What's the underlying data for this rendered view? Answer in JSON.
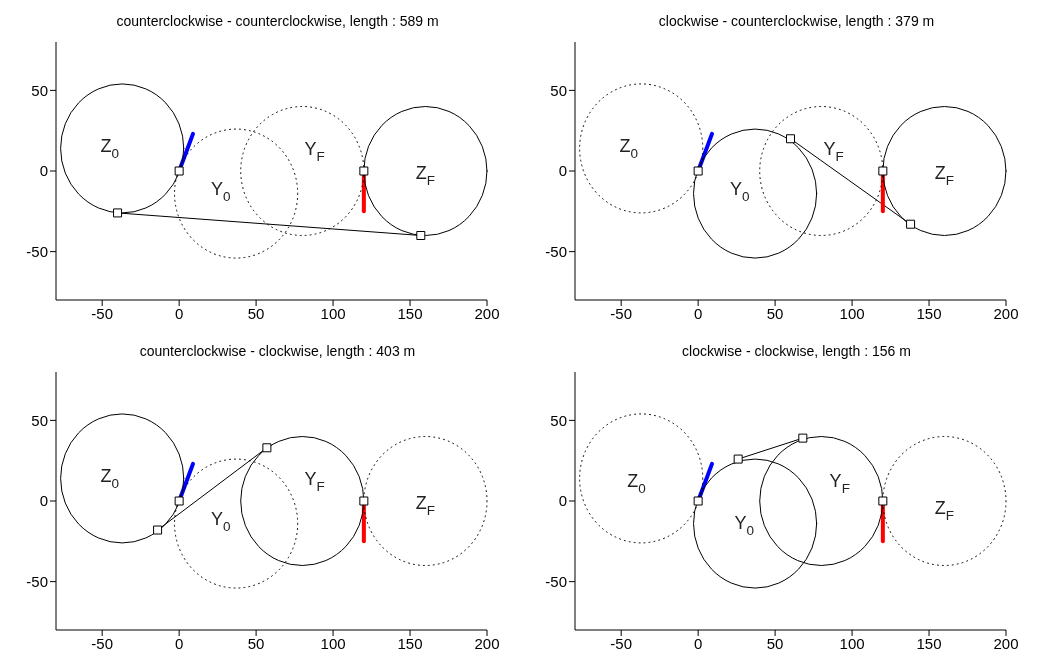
{
  "chart_data": [
    {
      "type": "line",
      "title": "counterclockwise - counterclockwise, length : 589 m",
      "xlim": [
        -80,
        200
      ],
      "ylim": [
        -80,
        80
      ],
      "xticks": [
        -50,
        0,
        50,
        100,
        150,
        200
      ],
      "yticks": [
        -50,
        0,
        50
      ],
      "series": [
        {
          "color": "#000000",
          "line_style": "solid",
          "x": [
            -40,
            157
          ],
          "values": [
            -26,
            -40
          ]
        },
        {
          "color": "#0000ff",
          "line_style": "solid",
          "x": [
            0,
            9
          ],
          "values": [
            0,
            23
          ]
        },
        {
          "color": "#ff0000",
          "line_style": "solid",
          "x": [
            120,
            120
          ],
          "values": [
            0,
            -25
          ]
        },
        {
          "type": "scatter",
          "marker": "square",
          "color": "#000000",
          "x": [
            0,
            -40,
            157,
            120
          ],
          "values": [
            0,
            -26,
            -40,
            0
          ]
        }
      ],
      "annotations": [
        "Z$_{0}$",
        "Y$_{0}$",
        "Y$_{F}$",
        "Z$_{F}$"
      ]
    },
    {
      "type": "line",
      "title": "clockwise - counterclockwise, length : 379 m",
      "xlim": [
        -80,
        200
      ],
      "ylim": [
        -80,
        80
      ],
      "xticks": [
        -50,
        0,
        50,
        100,
        150,
        200
      ],
      "yticks": [
        -50,
        0,
        50
      ],
      "series": [
        {
          "color": "#000000",
          "line_style": "solid",
          "x": [
            60,
            138
          ],
          "values": [
            20,
            -33
          ]
        },
        {
          "color": "#0000ff",
          "line_style": "solid",
          "x": [
            0,
            9
          ],
          "values": [
            0,
            23
          ]
        },
        {
          "color": "#ff0000",
          "line_style": "solid",
          "x": [
            120,
            120
          ],
          "values": [
            0,
            -25
          ]
        },
        {
          "type": "scatter",
          "marker": "square",
          "color": "#000000",
          "x": [
            0,
            60,
            138,
            120
          ],
          "values": [
            0,
            20,
            -33,
            0
          ]
        }
      ],
      "annotations": [
        "Z$_{0}$",
        "Y$_{0}$",
        "Y$_{F}$",
        "Z$_{F}$"
      ]
    },
    {
      "type": "line",
      "title": "counterclockwise - clockwise, length : 403 m",
      "xlim": [
        -80,
        200
      ],
      "ylim": [
        -80,
        80
      ],
      "xticks": [
        -50,
        0,
        50,
        100,
        150,
        200
      ],
      "yticks": [
        -50,
        0,
        50
      ],
      "series": [
        {
          "color": "#000000",
          "line_style": "solid",
          "x": [
            -14,
            57
          ],
          "values": [
            -18,
            33
          ]
        },
        {
          "color": "#0000ff",
          "line_style": "solid",
          "x": [
            0,
            9
          ],
          "values": [
            0,
            23
          ]
        },
        {
          "color": "#ff0000",
          "line_style": "solid",
          "x": [
            120,
            120
          ],
          "values": [
            0,
            -25
          ]
        },
        {
          "type": "scatter",
          "marker": "square",
          "color": "#000000",
          "x": [
            0,
            -14,
            57,
            120
          ],
          "values": [
            0,
            -18,
            33,
            0
          ]
        }
      ],
      "annotations": [
        "Z$_{0}$",
        "Y$_{0}$",
        "Y$_{F}$",
        "Z$_{F}$"
      ]
    },
    {
      "type": "line",
      "title": "clockwise - clockwise, length : 156 m",
      "xlim": [
        -80,
        200
      ],
      "ylim": [
        -80,
        80
      ],
      "xticks": [
        -50,
        0,
        50,
        100,
        150,
        200
      ],
      "yticks": [
        -50,
        0,
        50
      ],
      "series": [
        {
          "color": "#000000",
          "line_style": "solid",
          "x": [
            26,
            68
          ],
          "values": [
            26,
            39
          ]
        },
        {
          "color": "#0000ff",
          "line_style": "solid",
          "x": [
            0,
            9
          ],
          "values": [
            0,
            23
          ]
        },
        {
          "color": "#ff0000",
          "line_style": "solid",
          "x": [
            120,
            120
          ],
          "values": [
            0,
            -25
          ]
        },
        {
          "type": "scatter",
          "marker": "square",
          "color": "#000000",
          "x": [
            0,
            26,
            68,
            120
          ],
          "values": [
            0,
            26,
            39,
            0
          ]
        }
      ],
      "annotations": [
        "Z$_{0}$",
        "Y$_{0}$",
        "Y$_{F}$",
        "Z$_{F}$"
      ]
    }
  ]
}
